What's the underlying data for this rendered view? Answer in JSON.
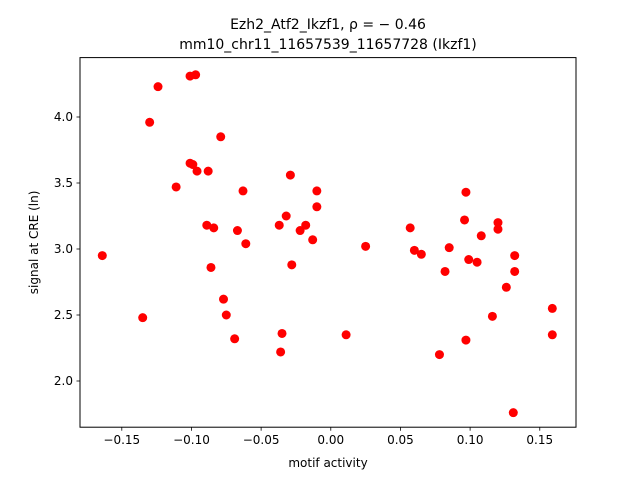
{
  "chart_data": {
    "type": "scatter",
    "title_line1": "Ezh2_Atf2_Ikzf1, ρ = − 0.46",
    "title_line2": "mm10_chr11_11657539_11657728 (Ikzf1)",
    "xlabel": "motif activity",
    "ylabel": "signal at CRE (ln)",
    "xlim": [
      -0.18,
      0.176
    ],
    "ylim": [
      1.65,
      4.45
    ],
    "xticks": [
      -0.15,
      -0.1,
      -0.05,
      0.0,
      0.05,
      0.1,
      0.15
    ],
    "xtick_labels": [
      "−0.15",
      "−0.10",
      "−0.05",
      "0.00",
      "0.05",
      "0.10",
      "0.15"
    ],
    "yticks": [
      2.0,
      2.5,
      3.0,
      3.5,
      4.0
    ],
    "ytick_labels": [
      "2.0",
      "2.5",
      "3.0",
      "3.5",
      "4.0"
    ],
    "grid": false,
    "marker_color": "#ff0000",
    "points": [
      {
        "x": -0.164,
        "y": 2.95
      },
      {
        "x": -0.135,
        "y": 2.48
      },
      {
        "x": -0.13,
        "y": 3.96
      },
      {
        "x": -0.124,
        "y": 4.23
      },
      {
        "x": -0.111,
        "y": 3.47
      },
      {
        "x": -0.101,
        "y": 4.31
      },
      {
        "x": -0.101,
        "y": 3.65
      },
      {
        "x": -0.099,
        "y": 3.64
      },
      {
        "x": -0.097,
        "y": 4.32
      },
      {
        "x": -0.096,
        "y": 3.59
      },
      {
        "x": -0.089,
        "y": 3.18
      },
      {
        "x": -0.088,
        "y": 3.59
      },
      {
        "x": -0.086,
        "y": 2.86
      },
      {
        "x": -0.084,
        "y": 3.16
      },
      {
        "x": -0.079,
        "y": 3.85
      },
      {
        "x": -0.077,
        "y": 2.62
      },
      {
        "x": -0.075,
        "y": 2.5
      },
      {
        "x": -0.069,
        "y": 2.32
      },
      {
        "x": -0.067,
        "y": 3.14
      },
      {
        "x": -0.063,
        "y": 3.44
      },
      {
        "x": -0.061,
        "y": 3.04
      },
      {
        "x": -0.037,
        "y": 3.18
      },
      {
        "x": -0.036,
        "y": 2.22
      },
      {
        "x": -0.035,
        "y": 2.36
      },
      {
        "x": -0.032,
        "y": 3.25
      },
      {
        "x": -0.029,
        "y": 3.56
      },
      {
        "x": -0.028,
        "y": 2.88
      },
      {
        "x": -0.022,
        "y": 3.14
      },
      {
        "x": -0.018,
        "y": 3.18
      },
      {
        "x": -0.013,
        "y": 3.07
      },
      {
        "x": -0.01,
        "y": 3.44
      },
      {
        "x": -0.01,
        "y": 3.32
      },
      {
        "x": 0.011,
        "y": 2.35
      },
      {
        "x": 0.025,
        "y": 3.02
      },
      {
        "x": 0.057,
        "y": 3.16
      },
      {
        "x": 0.06,
        "y": 2.99
      },
      {
        "x": 0.065,
        "y": 2.96
      },
      {
        "x": 0.078,
        "y": 2.2
      },
      {
        "x": 0.082,
        "y": 2.83
      },
      {
        "x": 0.085,
        "y": 3.01
      },
      {
        "x": 0.096,
        "y": 3.22
      },
      {
        "x": 0.097,
        "y": 3.43
      },
      {
        "x": 0.097,
        "y": 2.31
      },
      {
        "x": 0.099,
        "y": 2.92
      },
      {
        "x": 0.105,
        "y": 2.9
      },
      {
        "x": 0.108,
        "y": 3.1
      },
      {
        "x": 0.116,
        "y": 2.49
      },
      {
        "x": 0.12,
        "y": 3.2
      },
      {
        "x": 0.12,
        "y": 3.15
      },
      {
        "x": 0.126,
        "y": 2.71
      },
      {
        "x": 0.131,
        "y": 1.76
      },
      {
        "x": 0.132,
        "y": 2.83
      },
      {
        "x": 0.132,
        "y": 2.95
      },
      {
        "x": 0.159,
        "y": 2.55
      },
      {
        "x": 0.159,
        "y": 2.35
      }
    ]
  }
}
